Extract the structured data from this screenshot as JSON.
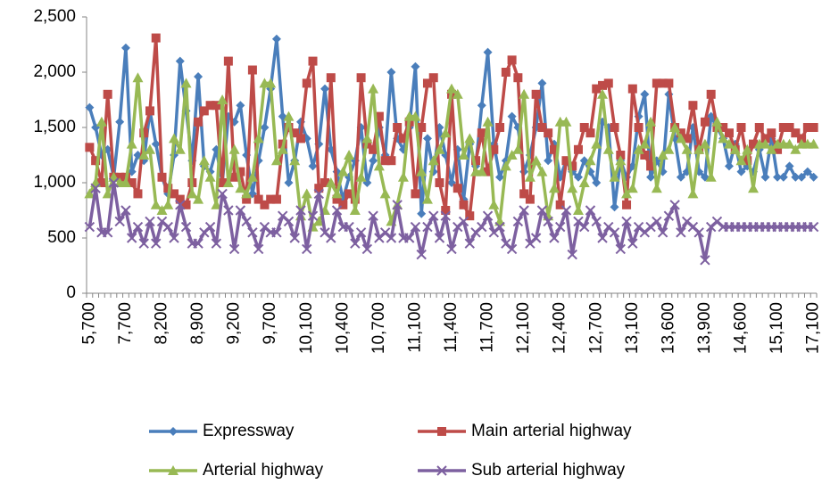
{
  "chart_data": {
    "type": "line",
    "categories": [
      "5,700",
      null,
      null,
      null,
      null,
      null,
      "7,700",
      null,
      null,
      null,
      null,
      null,
      "8,200",
      null,
      null,
      null,
      null,
      null,
      "8,900",
      null,
      null,
      null,
      null,
      null,
      "9,200",
      null,
      null,
      null,
      null,
      null,
      "9,700",
      null,
      null,
      null,
      null,
      null,
      "10,100",
      null,
      null,
      null,
      null,
      null,
      "10,400",
      null,
      null,
      null,
      null,
      null,
      "10,700",
      null,
      null,
      null,
      null,
      null,
      "11,100",
      null,
      null,
      null,
      null,
      null,
      "11,400",
      null,
      null,
      null,
      null,
      null,
      "11,700",
      null,
      null,
      null,
      null,
      null,
      "12,100",
      null,
      null,
      null,
      null,
      null,
      "12,400",
      null,
      null,
      null,
      null,
      null,
      "12,700",
      null,
      null,
      null,
      null,
      null,
      "13,100",
      null,
      null,
      null,
      null,
      null,
      "13,600",
      null,
      null,
      null,
      null,
      null,
      "13,900",
      null,
      null,
      null,
      null,
      null,
      "14,600",
      null,
      null,
      null,
      null,
      null,
      "15,100",
      null,
      null,
      null,
      null,
      null,
      "17,100"
    ],
    "series": [
      {
        "name": "Expressway",
        "color": "#4a7ebb",
        "marker": "diamond",
        "values": [
          1680,
          1500,
          1250,
          1300,
          1050,
          1550,
          2220,
          1100,
          1250,
          1200,
          1650,
          1350,
          1050,
          900,
          1250,
          2100,
          1650,
          1200,
          1960,
          1150,
          1100,
          1300,
          1000,
          1600,
          1550,
          1700,
          1250,
          900,
          1200,
          1500,
          1850,
          2300,
          1600,
          1000,
          1200,
          1550,
          1400,
          1150,
          1350,
          1850,
          1300,
          1100,
          850,
          1050,
          1200,
          1500,
          1000,
          1200,
          1500,
          1250,
          2000,
          1400,
          1300,
          1500,
          2050,
          720,
          1400,
          1100,
          1500,
          1250,
          1000,
          1300,
          850,
          1350,
          1150,
          1700,
          2180,
          1350,
          1050,
          1200,
          1600,
          1500,
          1100,
          1250,
          1500,
          1900,
          1200,
          1350,
          1050,
          1200,
          1100,
          1050,
          1200,
          1100,
          1000,
          1550,
          1500,
          780,
          1200,
          1050,
          1150,
          1600,
          1800,
          1050,
          1200,
          1100,
          1800,
          1400,
          1050,
          1100,
          1500,
          1100,
          1050,
          1600,
          1500,
          1400,
          1150,
          1350,
          1100,
          1150,
          1100,
          1300,
          1050,
          1400,
          1050,
          1050,
          1150,
          1050,
          1050,
          1100,
          1050
        ]
      },
      {
        "name": "Main arterial highway",
        "color": "#be4b48",
        "marker": "square",
        "values": [
          1320,
          1200,
          1000,
          1800,
          1050,
          1050,
          1050,
          1000,
          900,
          1450,
          1650,
          2310,
          1050,
          950,
          900,
          850,
          800,
          1000,
          1550,
          1650,
          1700,
          1700,
          1000,
          2100,
          1050,
          1100,
          850,
          2020,
          850,
          800,
          850,
          850,
          1350,
          1500,
          1450,
          1400,
          1900,
          2100,
          950,
          1000,
          1950,
          850,
          800,
          900,
          850,
          1950,
          1350,
          1300,
          1600,
          1200,
          1200,
          1500,
          1400,
          1550,
          900,
          1500,
          1900,
          1950,
          1000,
          750,
          1800,
          950,
          800,
          700,
          1200,
          1450,
          1100,
          1300,
          1500,
          2000,
          2110,
          1950,
          900,
          850,
          1800,
          1500,
          1450,
          1300,
          800,
          1200,
          1150,
          1300,
          1500,
          1450,
          1850,
          1880,
          1900,
          1500,
          1250,
          800,
          1850,
          1500,
          1250,
          1150,
          1900,
          1900,
          1900,
          1500,
          1450,
          1400,
          1700,
          1300,
          1550,
          1800,
          1500,
          1500,
          1450,
          1300,
          1500,
          1200,
          1350,
          1500,
          1400,
          1450,
          1300,
          1500,
          1500,
          1450,
          1400,
          1500,
          1500
        ]
      },
      {
        "name": "Arterial highway",
        "color": "#98b954",
        "marker": "triangle",
        "values": [
          900,
          1000,
          1550,
          900,
          1050,
          1000,
          1000,
          1350,
          1950,
          1250,
          1300,
          800,
          750,
          800,
          1400,
          1300,
          1900,
          900,
          850,
          1200,
          1050,
          800,
          1750,
          1000,
          1300,
          950,
          900,
          1050,
          1400,
          1900,
          1900,
          1200,
          1300,
          1600,
          1200,
          700,
          900,
          600,
          650,
          750,
          1000,
          900,
          1100,
          1250,
          750,
          1050,
          1400,
          1850,
          1150,
          900,
          650,
          800,
          1050,
          1600,
          1600,
          1100,
          850,
          1200,
          1300,
          1450,
          1850,
          1800,
          1250,
          1400,
          1100,
          1100,
          1550,
          800,
          650,
          1150,
          1250,
          1300,
          1800,
          1050,
          1200,
          1100,
          700,
          950,
          1550,
          1550,
          950,
          750,
          1000,
          1200,
          1350,
          1800,
          1300,
          1050,
          1200,
          900,
          950,
          1300,
          1350,
          1550,
          950,
          1250,
          1300,
          1500,
          1400,
          1300,
          900,
          1300,
          1350,
          1050,
          1550,
          1400,
          1350,
          1300,
          1200,
          1300,
          950,
          1350,
          1350,
          1300,
          1350,
          1350,
          1350,
          1300,
          1350,
          1350,
          1350
        ]
      },
      {
        "name": "Sub arterial highway",
        "color": "#7d60a0",
        "marker": "x",
        "values": [
          600,
          950,
          550,
          550,
          1000,
          650,
          750,
          500,
          600,
          450,
          650,
          450,
          650,
          600,
          500,
          800,
          600,
          450,
          450,
          550,
          600,
          450,
          900,
          750,
          400,
          750,
          650,
          550,
          400,
          600,
          550,
          550,
          700,
          650,
          500,
          750,
          400,
          700,
          900,
          550,
          500,
          750,
          600,
          600,
          450,
          550,
          400,
          700,
          500,
          550,
          500,
          800,
          500,
          500,
          600,
          350,
          600,
          700,
          500,
          700,
          400,
          600,
          650,
          450,
          550,
          600,
          700,
          550,
          600,
          450,
          400,
          650,
          750,
          450,
          500,
          750,
          650,
          500,
          600,
          750,
          350,
          650,
          600,
          750,
          650,
          500,
          600,
          550,
          400,
          650,
          450,
          600,
          550,
          600,
          650,
          550,
          700,
          800,
          550,
          650,
          600,
          550,
          300,
          600,
          650,
          600,
          600,
          600,
          600,
          600,
          600,
          600,
          600,
          600,
          600,
          600,
          600,
          600,
          600,
          600,
          600
        ]
      }
    ],
    "ylim": [
      0,
      2500
    ],
    "yticks": [
      0,
      500,
      {
        "value": 1000,
        "label": "1,000"
      },
      {
        "value": 1500,
        "label": "1,500"
      },
      {
        "value": 2000,
        "label": "2,000"
      },
      {
        "value": 2500,
        "label": "2,500"
      }
    ],
    "grid": false,
    "legend": "bottom"
  }
}
